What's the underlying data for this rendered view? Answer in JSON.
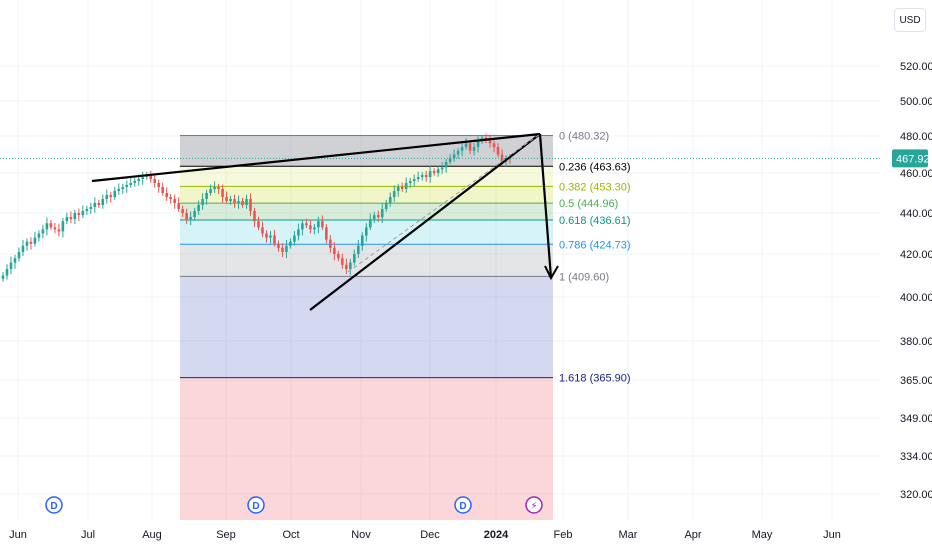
{
  "currency": "USD",
  "last_price": "467.92",
  "colors": {
    "up": "#26a69a",
    "down": "#ef5350",
    "trend": "#000000",
    "last_price": "#26a69a",
    "event": "#2962ff",
    "split": "#9c27b0"
  },
  "chart_data": {
    "type": "candlestick",
    "title": "",
    "x_labels": [
      "Jun",
      "Jul",
      "Aug",
      "Sep",
      "Oct",
      "Nov",
      "Dec",
      "2024",
      "Feb",
      "Mar",
      "Apr",
      "May",
      "Jun"
    ],
    "y_ticks": [
      "520.00",
      "500.00",
      "480.00",
      "460.00",
      "440.00",
      "420.00",
      "400.00",
      "380.00",
      "365.00",
      "349.00",
      "334.00",
      "320.00"
    ],
    "y_tick_values": [
      520,
      500,
      480,
      460,
      440,
      420,
      400,
      380,
      365,
      349,
      334,
      320
    ],
    "y_scale": "log",
    "grid": true,
    "last_price": 467.92,
    "fib_levels": [
      {
        "ratio": 0,
        "price": 480.32,
        "label": "0 (480.32)",
        "color": "#787b86"
      },
      {
        "ratio": 0.236,
        "price": 463.63,
        "label": "0.236 (463.63)",
        "color": "#000000"
      },
      {
        "ratio": 0.382,
        "price": 453.3,
        "label": "0.382 (453.30)",
        "color": "#9cb800"
      },
      {
        "ratio": 0.5,
        "price": 444.96,
        "label": "0.5 (444.96)",
        "color": "#4caf50"
      },
      {
        "ratio": 0.618,
        "price": 436.61,
        "label": "0.618 (436.61)",
        "color": "#089981"
      },
      {
        "ratio": 0.786,
        "price": 424.73,
        "label": "0.786 (424.73)",
        "color": "#2196f3"
      },
      {
        "ratio": 1,
        "price": 409.6,
        "label": "1 (409.60)",
        "color": "#787b86"
      },
      {
        "ratio": 1.618,
        "price": 365.9,
        "label": "1.618 (365.90)",
        "color": "#1a237e"
      }
    ],
    "closes": [
      410,
      413,
      416,
      418,
      421,
      424,
      426,
      425,
      428,
      430,
      432,
      435,
      433,
      432,
      431,
      436,
      438,
      437,
      440,
      439,
      441,
      442,
      443,
      445,
      444,
      447,
      449,
      448,
      451,
      452,
      453,
      454,
      455,
      456,
      457,
      458,
      459,
      457,
      455,
      453,
      450,
      448,
      447,
      445,
      442,
      440,
      437,
      438,
      441,
      444,
      447,
      450,
      452,
      453,
      452,
      448,
      446,
      447,
      445,
      446,
      444,
      447,
      441,
      436,
      433,
      430,
      428,
      429,
      425,
      423,
      421,
      424,
      426,
      429,
      432,
      435,
      434,
      432,
      433,
      436,
      433,
      427,
      423,
      420,
      418,
      415,
      413,
      416,
      420,
      424,
      429,
      433,
      437,
      439,
      438,
      442,
      445,
      448,
      451,
      453,
      452,
      455,
      456,
      457,
      458,
      459,
      458,
      461,
      460,
      462,
      463,
      466,
      468,
      470,
      472,
      474,
      476,
      472,
      474,
      477,
      479,
      478,
      476,
      474,
      470,
      466,
      468,
      467.92
    ],
    "event_badges": [
      "D",
      "D",
      "D",
      "⚡"
    ]
  }
}
